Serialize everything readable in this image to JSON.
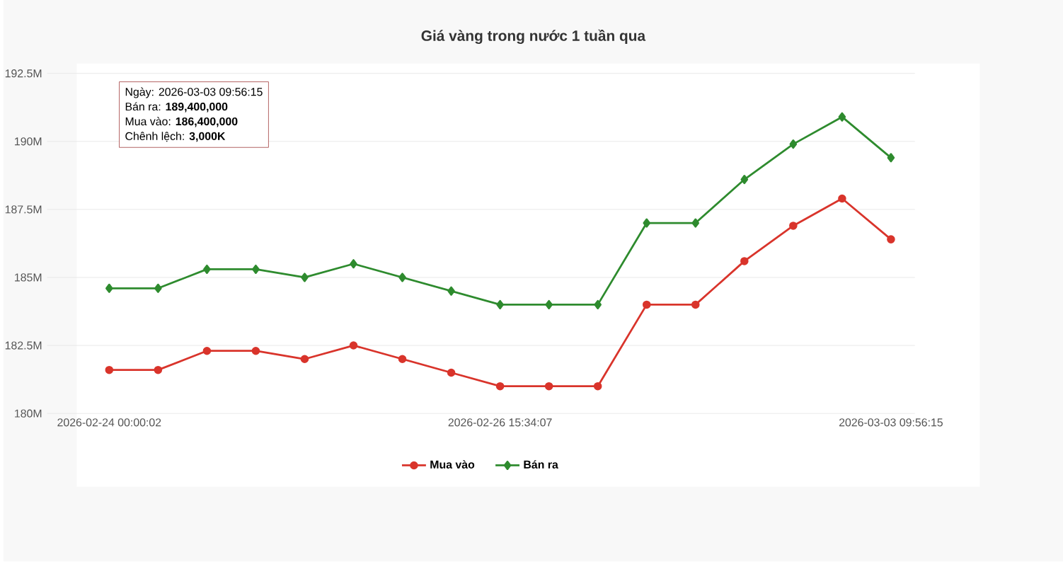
{
  "chart_data": {
    "type": "line",
    "title": "Giá vàng trong nước 1 tuần qua",
    "categories": [
      "2026-02-24 00:00:02",
      null,
      null,
      null,
      null,
      null,
      null,
      null,
      "2026-02-26 15:34:07",
      null,
      null,
      null,
      null,
      null,
      null,
      null,
      "2026-03-03 09:56:15"
    ],
    "series": [
      {
        "name": "Mua vào",
        "color": "#d9342b",
        "marker": "circle",
        "values": [
          181.6,
          181.6,
          182.3,
          182.3,
          182.0,
          182.5,
          182.0,
          181.5,
          181.0,
          181.0,
          181.0,
          184.0,
          184.0,
          185.6,
          186.9,
          187.9,
          186.4
        ]
      },
      {
        "name": "Bán ra",
        "color": "#2e8b2e",
        "marker": "diamond",
        "values": [
          184.6,
          184.6,
          185.3,
          185.3,
          185.0,
          185.5,
          185.0,
          184.5,
          184.0,
          184.0,
          184.0,
          187.0,
          187.0,
          188.6,
          189.9,
          190.9,
          189.4
        ]
      }
    ],
    "ylim": [
      180,
      192.5
    ],
    "yticks": [
      {
        "value": 180,
        "label": "180M"
      },
      {
        "value": 182.5,
        "label": "182.5M"
      },
      {
        "value": 185,
        "label": "185M"
      },
      {
        "value": 187.5,
        "label": "187.5M"
      },
      {
        "value": 190,
        "label": "190M"
      },
      {
        "value": 192.5,
        "label": "192.5M"
      }
    ],
    "grid": "y",
    "legend": "bottom",
    "line_style": "solid",
    "annotations": [
      "Ngày: 2026-03-03 09:56:15",
      "Bán ra: **189,400,000**",
      "Mua vào: **186,400,000**",
      "Chênh lệch: **3,000K**"
    ]
  }
}
